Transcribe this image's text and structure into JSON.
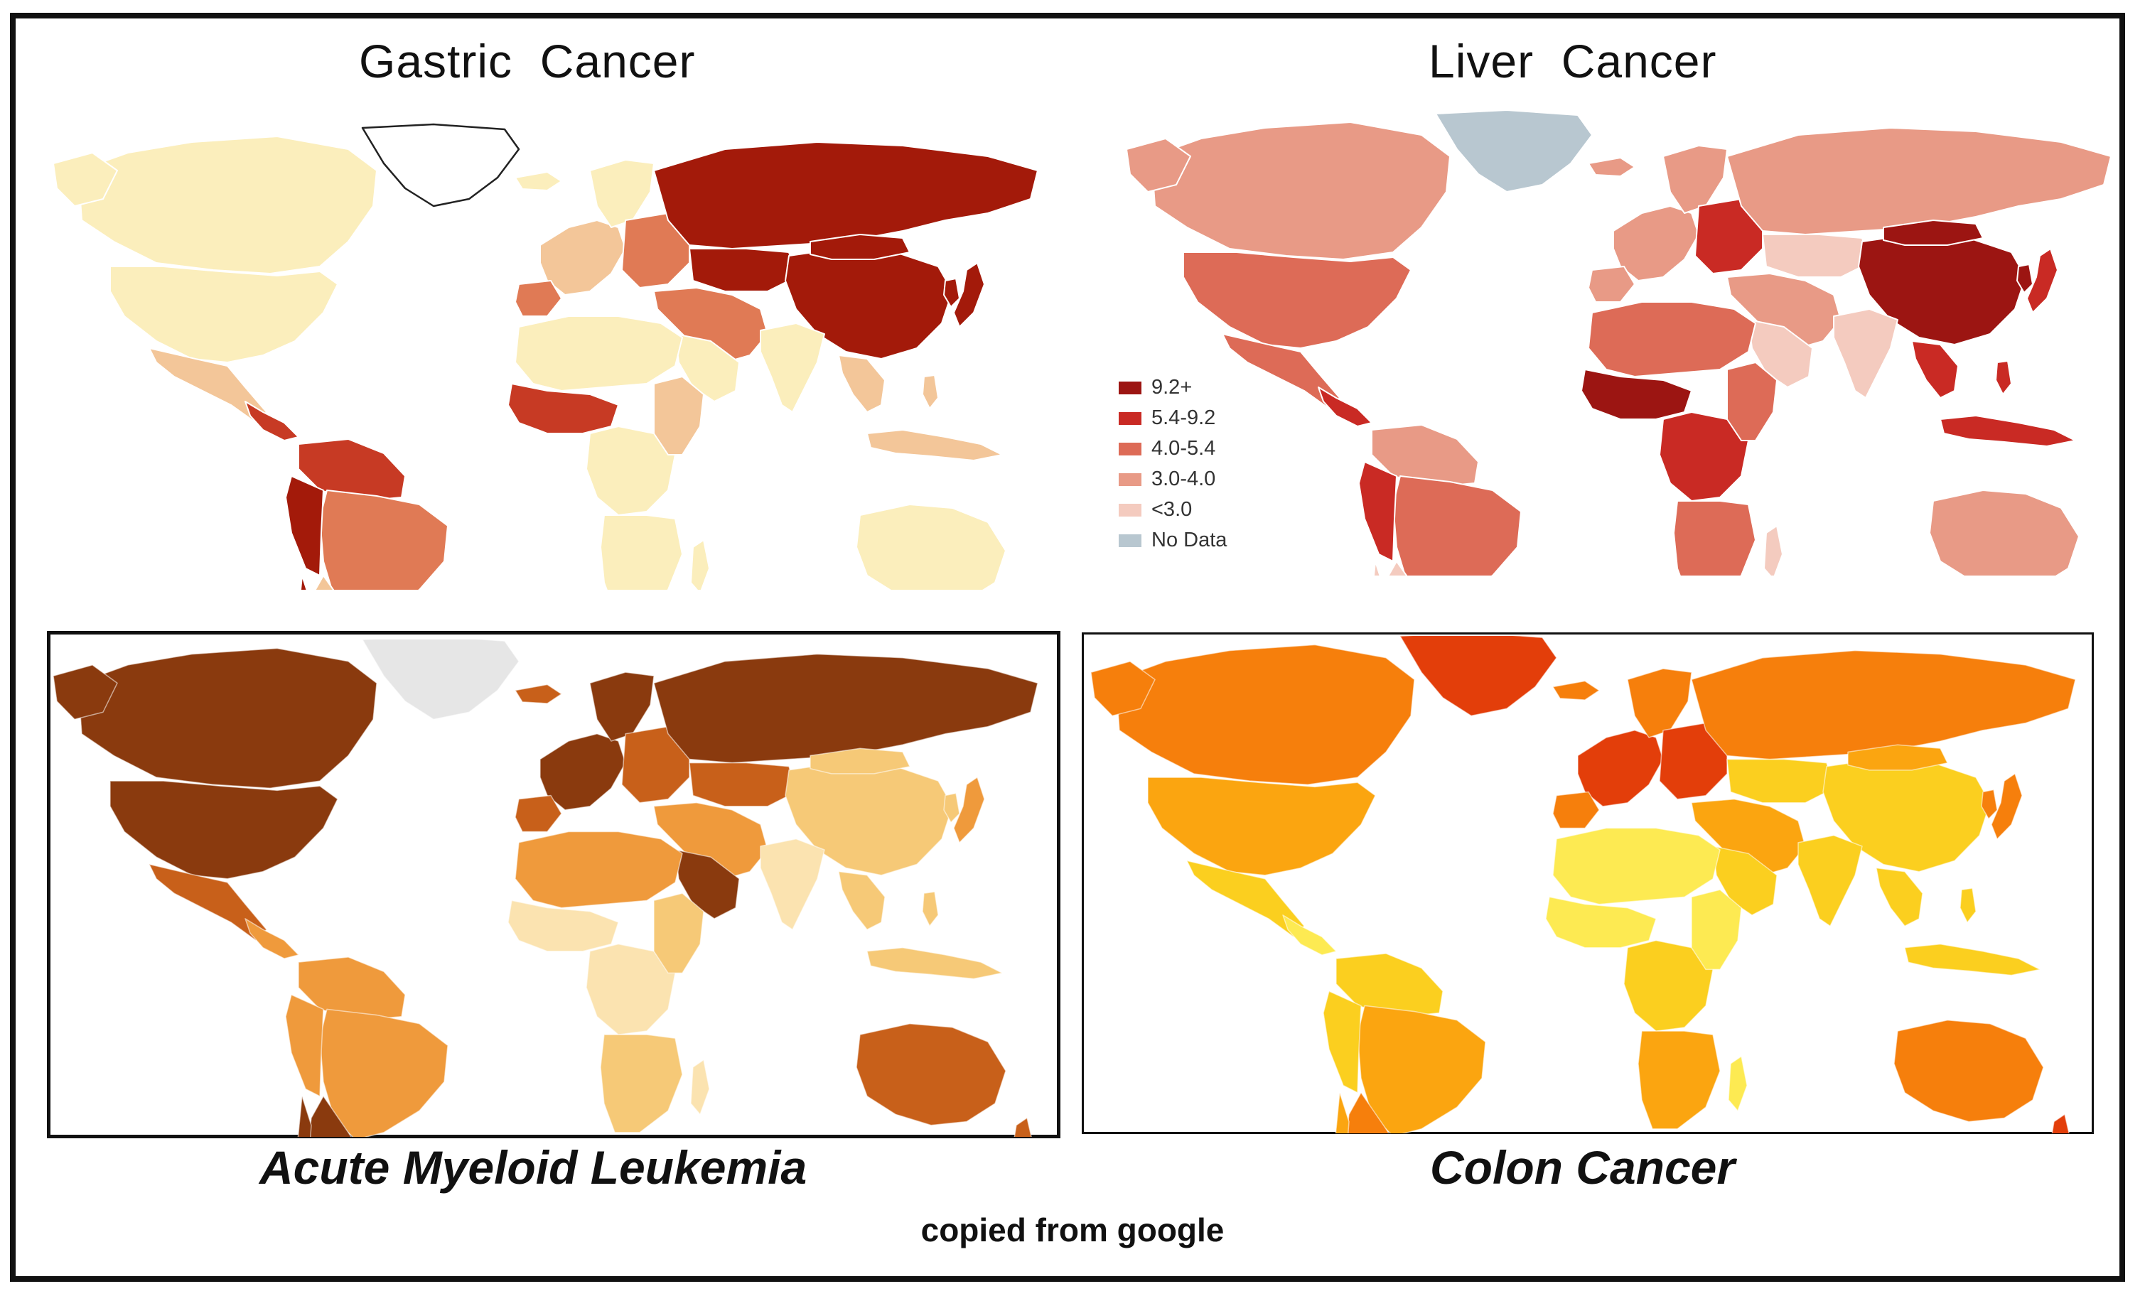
{
  "figure": {
    "credit": "copied from google",
    "panels": [
      {
        "key": "gastric",
        "title": "Gastric  Cancer",
        "palette": {
          "highest": "#a31a0a",
          "high": "#c73a24",
          "mid": "#e07a55",
          "low": "#f3c699",
          "lowest": "#fbeebc",
          "outline": "#222222"
        }
      },
      {
        "key": "liver",
        "title": "Liver  Cancer",
        "palette": {
          "highest": "#9c1512",
          "high": "#c92a24",
          "mid": "#dd6b57",
          "low": "#e89a86",
          "lowest": "#f4cbbf",
          "nodata": "#b8c7d0"
        },
        "legend": [
          {
            "label": "9.2+",
            "color": "#9c1512"
          },
          {
            "label": "5.4-9.2",
            "color": "#c92a24"
          },
          {
            "label": "4.0-5.4",
            "color": "#dd6b57"
          },
          {
            "label": "3.0-4.0",
            "color": "#e89a86"
          },
          {
            "label": "<3.0",
            "color": "#f4cbbf"
          },
          {
            "label": "No Data",
            "color": "#b8c7d0"
          }
        ]
      },
      {
        "key": "aml",
        "title": "Acute Myeloid Leukemia",
        "palette": {
          "highest": "#8a3a0e",
          "high": "#c8601a",
          "mid": "#ef9a3c",
          "low": "#f6c977",
          "lowest": "#fbe3b0",
          "nodata": "#e6e6e6"
        }
      },
      {
        "key": "colon",
        "title": "Colon Cancer",
        "palette": {
          "highest": "#e33e0a",
          "high": "#f67f0c",
          "mid": "#fba510",
          "low": "#fbcf1f",
          "lowest": "#fdea52"
        }
      }
    ]
  }
}
